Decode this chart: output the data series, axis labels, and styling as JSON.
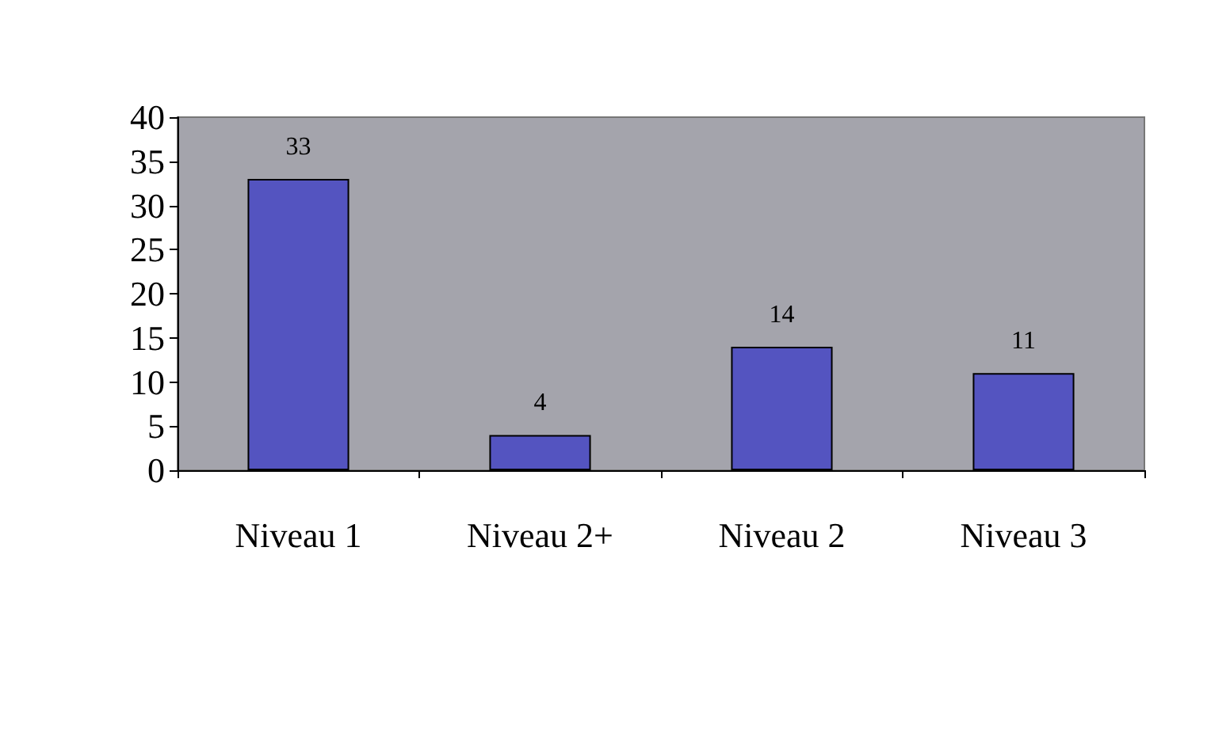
{
  "chart_data": {
    "type": "bar",
    "categories": [
      "Niveau 1",
      "Niveau 2+",
      "Niveau 2",
      "Niveau 3"
    ],
    "values": [
      33,
      4,
      14,
      11
    ],
    "color": "#5454c0",
    "ylim": [
      0,
      40
    ],
    "yticks": [
      0,
      5,
      10,
      15,
      20,
      25,
      30,
      35,
      40
    ],
    "grid": false,
    "data_labels": true
  }
}
